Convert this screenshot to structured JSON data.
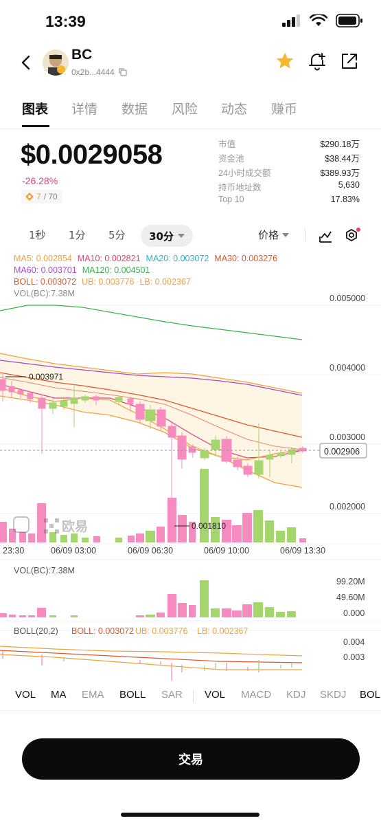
{
  "status": {
    "time": "13:39"
  },
  "header": {
    "name": "BC",
    "address": "0x2b...4444",
    "icons": [
      "back-chevron-icon",
      "star-icon",
      "bell-add-icon",
      "share-icon"
    ],
    "star_color": "#f5b82e"
  },
  "tabs": [
    "图表",
    "详情",
    "数据",
    "风险",
    "动态",
    "赚币"
  ],
  "price": {
    "value": "$0.0029058",
    "change": "-26.28%",
    "rank": "7",
    "rank_total": "/ 70"
  },
  "stats": [
    {
      "label": "市值",
      "value": "$290.18万"
    },
    {
      "label": "资金池",
      "value": "$38.44万"
    },
    {
      "label": "24小时成交额",
      "value": "$389.93万"
    },
    {
      "label": "持币地址数",
      "value": "5,630"
    },
    {
      "label": "Top 10",
      "value": "17.83%"
    }
  ],
  "timeframes": {
    "items": [
      "1秒",
      "1分",
      "5分"
    ],
    "active": "30分",
    "price_mode": "价格"
  },
  "ma_legend": [
    {
      "text": "MA5: 0.002854",
      "color": "#f0a23a"
    },
    {
      "text": "MA10: 0.002821",
      "color": "#e0407a"
    },
    {
      "text": "MA20: 0.003072",
      "color": "#2bb3c8"
    },
    {
      "text": "MA30: 0.003276",
      "color": "#e0572a"
    },
    {
      "text": "MA60: 0.003701",
      "color": "#a64cc4"
    },
    {
      "text": "MA120: 0.004501",
      "color": "#3bb04a"
    },
    {
      "text": "BOLL: 0.003072",
      "color": "#e0572a"
    },
    {
      "text": "UB: 0.003776",
      "color": "#f0a23a"
    },
    {
      "text": "LB: 0.002367",
      "color": "#f0a23a"
    },
    {
      "text": "VOL(BC):7.38M",
      "color": "#888888"
    }
  ],
  "chart_data": {
    "type": "candlestick",
    "y_ticks": [
      "0.005000",
      "0.004000",
      "0.003000",
      "0.002000"
    ],
    "x_ticks": [
      "23:30",
      "06/09 03:00",
      "06/09 06:30",
      "06/09 10:00",
      "06/09 13:30"
    ],
    "current_price": "0.002906",
    "high_label": "0.003971",
    "low_label": "0.001810",
    "up_color": "#a5d66e",
    "down_color": "#f58bbf"
  },
  "volume_panel": {
    "label": "VOL(BC):7.38M",
    "ticks": [
      "99.20M",
      "49.60M",
      "0.000"
    ]
  },
  "boll_panel": {
    "label": "BOLL(20,2)",
    "boll": "BOLL: 0.003072",
    "ub": "UB: 0.003776",
    "lb": "LB: 0.002367",
    "ticks": [
      "0.004",
      "0.003"
    ]
  },
  "watermark": "欧易",
  "indicators": {
    "main": [
      "VOL",
      "MA",
      "EMA",
      "BOLL",
      "SAR"
    ],
    "sub": [
      "VOL",
      "MACD",
      "KDJ",
      "SKDJ",
      "BOL"
    ]
  },
  "trade_button": "交易"
}
